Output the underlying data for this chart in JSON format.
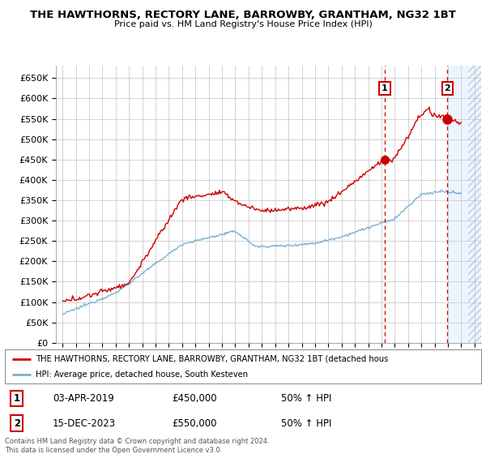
{
  "title": "THE HAWTHORNS, RECTORY LANE, BARROWBY, GRANTHAM, NG32 1BT",
  "subtitle": "Price paid vs. HM Land Registry's House Price Index (HPI)",
  "ylim": [
    0,
    680000
  ],
  "xlim_start": 1994.5,
  "xlim_end": 2026.5,
  "red_line_color": "#cc0000",
  "blue_line_color": "#7ab0d4",
  "marker1_date": 2019.25,
  "marker1_value": 450000,
  "marker2_date": 2023.96,
  "marker2_value": 550000,
  "marker1_label": "1",
  "marker2_label": "2",
  "legend_line1": "THE HAWTHORNS, RECTORY LANE, BARROWBY, GRANTHAM, NG32 1BT (detached hous",
  "legend_line2": "HPI: Average price, detached house, South Kesteven",
  "table_row1": [
    "1",
    "03-APR-2019",
    "£450,000",
    "50% ↑ HPI"
  ],
  "table_row2": [
    "2",
    "15-DEC-2023",
    "£550,000",
    "50% ↑ HPI"
  ],
  "footer": "Contains HM Land Registry data © Crown copyright and database right 2024.\nThis data is licensed under the Open Government Licence v3.0.",
  "bg_color": "#ffffff",
  "grid_color": "#cccccc",
  "future_bg_color": "#ddeeff",
  "future_start": 2024.08,
  "hatch_start": 2025.5
}
